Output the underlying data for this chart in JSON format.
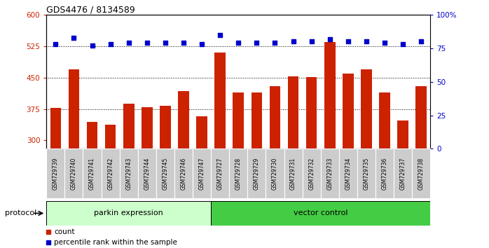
{
  "title": "GDS4476 / 8134589",
  "samples": [
    "GSM729739",
    "GSM729740",
    "GSM729741",
    "GSM729742",
    "GSM729743",
    "GSM729744",
    "GSM729745",
    "GSM729746",
    "GSM729747",
    "GSM729727",
    "GSM729728",
    "GSM729729",
    "GSM729730",
    "GSM729731",
    "GSM729732",
    "GSM729733",
    "GSM729734",
    "GSM729735",
    "GSM729736",
    "GSM729737",
    "GSM729738"
  ],
  "counts": [
    378,
    470,
    345,
    338,
    388,
    380,
    383,
    418,
    358,
    510,
    415,
    415,
    430,
    453,
    452,
    535,
    460,
    470,
    415,
    348,
    430
  ],
  "percentile_ranks": [
    78,
    83,
    77,
    78,
    79,
    79,
    79,
    79,
    78,
    85,
    79,
    79,
    79,
    80,
    80,
    82,
    80,
    80,
    79,
    78,
    80
  ],
  "group1_label": "parkin expression",
  "group2_label": "vector control",
  "group1_count": 9,
  "group2_count": 12,
  "protocol_label": "protocol",
  "ylim_left": [
    280,
    600
  ],
  "ylim_right": [
    0,
    100
  ],
  "yticks_left": [
    300,
    375,
    450,
    525,
    600
  ],
  "yticks_right": [
    0,
    25,
    50,
    75,
    100
  ],
  "bar_color": "#cc2200",
  "dot_color": "#0000cc",
  "group1_bg": "#ccffcc",
  "group2_bg": "#44cc44",
  "xticklabel_bg": "#cccccc",
  "legend_count_label": "count",
  "legend_pct_label": "percentile rank within the sample",
  "dotted_line_ticks": [
    375,
    450,
    525
  ],
  "bar_bottom": 280
}
